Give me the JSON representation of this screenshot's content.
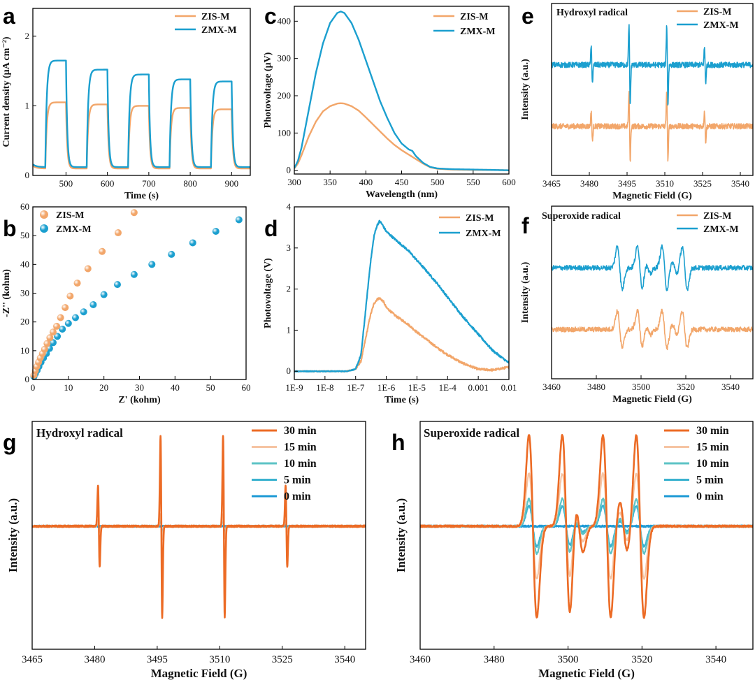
{
  "colors": {
    "zis": "#f2a66a",
    "zmx": "#1b9fcf",
    "t30": "#ec6b25",
    "t15": "#f6c4a3",
    "t10": "#5cc3c6",
    "t5": "#3ab2cf",
    "t0": "#1d9ad5"
  },
  "chart_data": [
    {
      "id": "a",
      "type": "line",
      "panel_label": "a",
      "xlabel": "Time (s)",
      "ylabel": "Current density (μA cm⁻²)",
      "xlim": [
        420,
        945
      ],
      "ylim": [
        0,
        2.4
      ],
      "xticks": [
        500,
        600,
        700,
        800,
        900
      ],
      "yticks": [
        0,
        1,
        2
      ],
      "light_on_periods": [
        [
          450,
          500
        ],
        [
          550,
          600
        ],
        [
          650,
          700
        ],
        [
          750,
          800
        ],
        [
          850,
          900
        ]
      ],
      "legend": "top-right",
      "series": [
        {
          "name": "ZIS-M",
          "color_key": "zis",
          "plateau": [
            1.05,
            1.02,
            1.0,
            0.97,
            0.95
          ],
          "baseline": 0.1
        },
        {
          "name": "ZMX-M",
          "color_key": "zmx",
          "plateau": [
            1.65,
            1.52,
            1.45,
            1.38,
            1.35
          ],
          "baseline": 0.12
        }
      ]
    },
    {
      "id": "b",
      "type": "scatter",
      "panel_label": "b",
      "xlabel": "Z' (kohm)",
      "ylabel": "-Z'' (kohm)",
      "xlim": [
        0,
        60
      ],
      "ylim": [
        0,
        60
      ],
      "xticks": [
        0,
        10,
        20,
        30,
        40,
        50,
        60
      ],
      "yticks": [
        0,
        10,
        20,
        30,
        40,
        50,
        60
      ],
      "legend": "top-left",
      "series": [
        {
          "name": "ZIS-M",
          "color_key": "zis",
          "x": [
            0.3,
            0.7,
            1.1,
            1.6,
            2.1,
            2.7,
            3.3,
            4.0,
            4.8,
            5.7,
            6.7,
            7.8,
            9.1,
            10.5,
            12.5,
            15.5,
            19.5,
            24.0,
            28.5
          ],
          "y": [
            1.5,
            3.0,
            4.5,
            6.0,
            7.5,
            9.0,
            10.5,
            12.5,
            14.5,
            16.5,
            18.5,
            21.5,
            25.0,
            29.0,
            33.5,
            38.5,
            44.5,
            51.0,
            58.0
          ]
        },
        {
          "name": "ZMX-M",
          "color_key": "zmx",
          "x": [
            0.3,
            0.7,
            1.2,
            1.7,
            2.3,
            3.0,
            3.8,
            4.7,
            5.7,
            6.9,
            8.3,
            10.0,
            12.0,
            14.3,
            17.0,
            20.0,
            23.8,
            28.5,
            33.5,
            39.0,
            45.0,
            51.5,
            58.0
          ],
          "y": [
            1.0,
            2.0,
            3.2,
            4.5,
            6.0,
            7.5,
            9.0,
            10.8,
            12.8,
            15.0,
            17.5,
            19.5,
            21.5,
            23.5,
            26.0,
            29.5,
            33.0,
            36.5,
            40.0,
            43.5,
            47.5,
            51.5,
            55.5
          ]
        }
      ]
    },
    {
      "id": "c",
      "type": "line",
      "panel_label": "c",
      "xlabel": "Wavelength (nm)",
      "ylabel": "Photovoltage (μV)",
      "xlim": [
        300,
        600
      ],
      "ylim": [
        -10,
        440
      ],
      "xticks": [
        300,
        350,
        400,
        450,
        500,
        550,
        600
      ],
      "yticks": [
        0,
        100,
        200,
        300,
        400
      ],
      "legend": "top-right",
      "series": [
        {
          "name": "ZIS-M",
          "color_key": "zis",
          "x": [
            300,
            305,
            310,
            320,
            330,
            340,
            350,
            360,
            365,
            370,
            380,
            390,
            400,
            410,
            420,
            430,
            440,
            450,
            460,
            470,
            480,
            490,
            500,
            520,
            550,
            575,
            600
          ],
          "y": [
            5,
            18,
            40,
            90,
            130,
            158,
            172,
            179,
            180,
            179,
            172,
            160,
            142,
            123,
            104,
            85,
            68,
            54,
            42,
            30,
            18,
            8,
            4,
            2,
            1,
            1,
            0
          ]
        },
        {
          "name": "ZMX-M",
          "color_key": "zmx",
          "x": [
            300,
            305,
            310,
            320,
            330,
            340,
            350,
            360,
            365,
            370,
            380,
            390,
            400,
            410,
            420,
            430,
            440,
            450,
            460,
            465,
            470,
            480,
            490,
            500,
            520,
            550,
            575,
            600
          ],
          "y": [
            6,
            25,
            60,
            160,
            260,
            340,
            395,
            422,
            426,
            422,
            395,
            350,
            295,
            240,
            185,
            140,
            100,
            72,
            56,
            52,
            38,
            20,
            9,
            5,
            3,
            2,
            1,
            0
          ]
        }
      ]
    },
    {
      "id": "d",
      "type": "line",
      "panel_label": "d",
      "xscale": "log",
      "xlabel": "Time (s)",
      "ylabel": "Photovoltage (V)",
      "xlim": [
        1e-09,
        0.01
      ],
      "ylim": [
        -0.2,
        4
      ],
      "xticks": [
        1e-09,
        1e-08,
        1e-07,
        1e-06,
        1e-05,
        0.0001,
        0.001,
        0.01
      ],
      "xticklabels": [
        "1E-9",
        "1E-8",
        "1E-7",
        "1E-6",
        "1E-5",
        "1E-4",
        "0.001",
        "0.01"
      ],
      "yticks": [
        0,
        1,
        2,
        3,
        4
      ],
      "legend": "top-right",
      "series": [
        {
          "name": "ZIS-M",
          "color_key": "zis",
          "x": [
            1e-09,
            1e-08,
            5e-08,
            1e-07,
            1.5e-07,
            2e-07,
            3e-07,
            4e-07,
            5e-07,
            6e-07,
            8e-07,
            1e-06,
            2e-06,
            5e-06,
            1e-05,
            2e-05,
            5e-05,
            0.0001,
            0.0003,
            0.001,
            0.003,
            0.01
          ],
          "y": [
            0,
            0,
            0,
            0.05,
            0.25,
            0.7,
            1.35,
            1.65,
            1.75,
            1.78,
            1.7,
            1.55,
            1.35,
            1.15,
            0.95,
            0.78,
            0.55,
            0.4,
            0.2,
            0.05,
            0.03,
            0.1
          ]
        },
        {
          "name": "ZMX-M",
          "color_key": "zmx",
          "x": [
            1e-09,
            1e-08,
            5e-08,
            1e-07,
            1.5e-07,
            2e-07,
            3e-07,
            4e-07,
            5e-07,
            6e-07,
            7e-07,
            1e-06,
            2e-06,
            5e-06,
            1e-05,
            2e-05,
            5e-05,
            0.0001,
            0.0003,
            0.001,
            0.003,
            0.01
          ],
          "y": [
            0,
            0,
            0,
            0.05,
            0.4,
            1.3,
            2.6,
            3.3,
            3.55,
            3.65,
            3.6,
            3.4,
            3.2,
            2.95,
            2.7,
            2.45,
            2.1,
            1.8,
            1.35,
            0.9,
            0.5,
            0.2
          ]
        }
      ]
    },
    {
      "id": "e",
      "type": "line",
      "panel_label": "e",
      "title": "Hydroxyl radical",
      "xlabel": "Magnetic Field (G)",
      "ylabel": "Intensity (a.u.)",
      "xlim": [
        3465,
        3545
      ],
      "xticks": [
        3465,
        3480,
        3495,
        3510,
        3525,
        3540
      ],
      "legend": "top-right",
      "series": [
        {
          "name": "ZIS-M",
          "color_key": "zis",
          "offset": 0.0,
          "amp": 0.55
        },
        {
          "name": "ZMX-M",
          "color_key": "zmx",
          "offset": 1.0,
          "amp": 0.65
        }
      ]
    },
    {
      "id": "f",
      "type": "line",
      "panel_label": "f",
      "title": "Superoxide radical",
      "xlabel": "Magnetic Field (G)",
      "ylabel": "Intensity (a.u.)",
      "xlim": [
        3460,
        3550
      ],
      "xticks": [
        3460,
        3480,
        3500,
        3520,
        3540
      ],
      "legend": "top-right",
      "series": [
        {
          "name": "ZIS-M",
          "color_key": "zis",
          "offset": 0.0,
          "amp": 0.3
        },
        {
          "name": "ZMX-M",
          "color_key": "zmx",
          "offset": 1.0,
          "amp": 0.35
        }
      ]
    },
    {
      "id": "g",
      "type": "line",
      "panel_label": "g",
      "title": "Hydroxyl radical",
      "xlabel": "Magnetic Field (G)",
      "ylabel": "Intensity (a.u.)",
      "xlim": [
        3465,
        3545
      ],
      "xticks": [
        3465,
        3480,
        3495,
        3510,
        3525,
        3540
      ],
      "legend": "top-right",
      "series": [
        {
          "name": "30 min",
          "color_key": "t30",
          "amp": 1.0
        },
        {
          "name": "15 min",
          "color_key": "t15",
          "amp": 0.14
        },
        {
          "name": "10 min",
          "color_key": "t10",
          "amp": 0.12
        },
        {
          "name": "5 min",
          "color_key": "t5",
          "amp": 0.09
        },
        {
          "name": "0 min",
          "color_key": "t0",
          "amp": 0.0
        }
      ]
    },
    {
      "id": "h",
      "type": "line",
      "panel_label": "h",
      "title": "Superoxide radical",
      "xlabel": "Magnetic Field (G)",
      "ylabel": "Intensity (a.u.)",
      "xlim": [
        3460,
        3550
      ],
      "xticks": [
        3460,
        3480,
        3500,
        3520,
        3540
      ],
      "legend": "top-right",
      "series": [
        {
          "name": "30 min",
          "color_key": "t30",
          "amp": 1.0
        },
        {
          "name": "15 min",
          "color_key": "t15",
          "amp": 0.58
        },
        {
          "name": "10 min",
          "color_key": "t10",
          "amp": 0.3
        },
        {
          "name": "5 min",
          "color_key": "t5",
          "amp": 0.22
        },
        {
          "name": "0 min",
          "color_key": "t0",
          "amp": 0.0
        }
      ]
    }
  ]
}
